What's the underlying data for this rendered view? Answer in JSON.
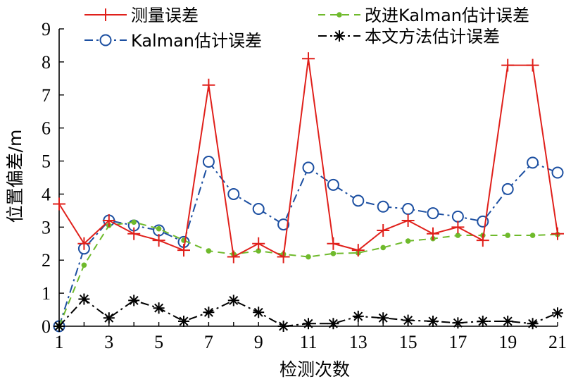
{
  "chart_data": {
    "type": "line",
    "xlabel": "检测次数",
    "ylabel": "位置偏差/m",
    "xlim": [
      1,
      21
    ],
    "ylim": [
      0,
      9
    ],
    "xticks": [
      1,
      3,
      5,
      7,
      9,
      11,
      13,
      15,
      17,
      19,
      21
    ],
    "yticks": [
      0,
      1,
      2,
      3,
      4,
      5,
      6,
      7,
      8,
      9
    ],
    "grid": false,
    "legend_position": "top",
    "x": [
      1,
      2,
      3,
      4,
      5,
      6,
      7,
      8,
      9,
      10,
      11,
      12,
      13,
      14,
      15,
      16,
      17,
      18,
      19,
      20,
      21
    ],
    "series": [
      {
        "name": "测量误差",
        "color": "#e0201b",
        "marker": "plus",
        "line": "solid",
        "values": [
          3.7,
          2.5,
          3.2,
          2.8,
          2.6,
          2.3,
          7.3,
          2.1,
          2.5,
          2.1,
          8.1,
          2.5,
          2.3,
          2.9,
          3.2,
          2.8,
          3.0,
          2.6,
          7.9,
          7.9,
          2.8
        ]
      },
      {
        "name": "Kalman估计误差",
        "color": "#1c4fa1",
        "marker": "circle",
        "line": "dashdot",
        "values": [
          0.0,
          2.35,
          3.2,
          3.05,
          2.9,
          2.55,
          4.98,
          4.0,
          3.55,
          3.08,
          4.8,
          4.28,
          3.8,
          3.62,
          3.55,
          3.42,
          3.32,
          3.17,
          4.15,
          4.95,
          4.65
        ]
      },
      {
        "name": "改进Kalman估计误差",
        "color": "#6fba2c",
        "marker": "dot",
        "line": "dashed",
        "values": [
          0.0,
          1.85,
          3.05,
          3.15,
          2.95,
          2.6,
          2.28,
          2.18,
          2.28,
          2.18,
          2.1,
          2.2,
          2.22,
          2.38,
          2.58,
          2.65,
          2.75,
          2.75,
          2.75,
          2.75,
          2.78
        ]
      },
      {
        "name": "本文方法估计误差",
        "color": "#000000",
        "marker": "asterisk",
        "line": "dashdot",
        "values": [
          0.0,
          0.82,
          0.25,
          0.78,
          0.55,
          0.15,
          0.42,
          0.78,
          0.42,
          0.0,
          0.08,
          0.08,
          0.3,
          0.25,
          0.18,
          0.15,
          0.1,
          0.15,
          0.15,
          0.08,
          0.4
        ]
      }
    ]
  }
}
